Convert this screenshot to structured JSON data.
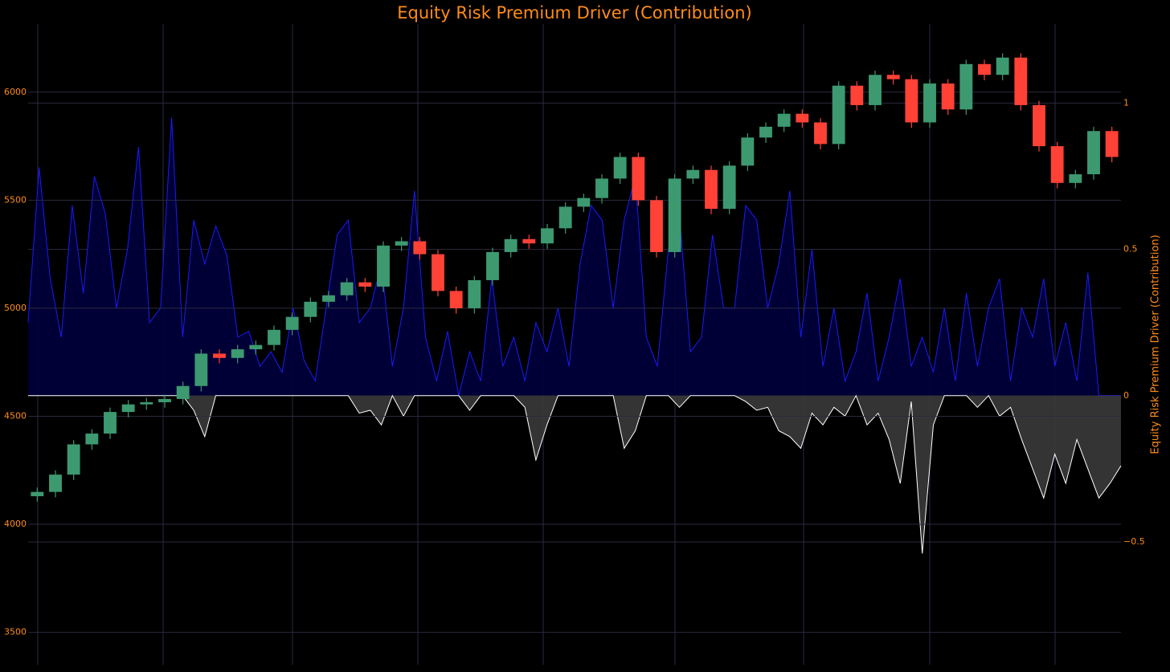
{
  "chart_data": [
    {
      "type": "candlestick",
      "title": "Equity Risk Premium Driver (Contribution)",
      "up_color": "#3d9970",
      "down_color": "#ff4136",
      "ylim": [
        3350,
        6315
      ],
      "yticks": [
        3500,
        4000,
        4500,
        5000,
        5500,
        6000
      ],
      "grid": true,
      "open": [
        4130,
        4150,
        4230,
        4370,
        4420,
        4520,
        4555,
        4565,
        4580,
        4640,
        4790,
        4770,
        4810,
        4830,
        4900,
        4960,
        5030,
        5060,
        5120,
        5100,
        5290,
        5310,
        5250,
        5080,
        5000,
        5130,
        5260,
        5320,
        5300,
        5370,
        5470,
        5510,
        5600,
        5700,
        5500,
        5260,
        5600,
        5640,
        5460,
        5660,
        5790,
        5840,
        5900,
        5860,
        5760,
        6030,
        5940,
        6080,
        6060,
        5860,
        6040,
        5920,
        6130,
        6080,
        6160,
        5940,
        5750,
        5580,
        5620,
        5820
      ],
      "high": [
        4170,
        4250,
        4390,
        4440,
        4540,
        4575,
        4585,
        4600,
        4660,
        4810,
        4810,
        4830,
        4850,
        4920,
        4980,
        5050,
        5080,
        5140,
        5140,
        5310,
        5330,
        5330,
        5270,
        5100,
        5150,
        5280,
        5340,
        5340,
        5390,
        5490,
        5530,
        5620,
        5720,
        5720,
        5520,
        5620,
        5660,
        5660,
        5680,
        5810,
        5860,
        5920,
        5920,
        5880,
        6050,
        6050,
        6100,
        6100,
        6080,
        6060,
        6060,
        6150,
        6150,
        6180,
        6180,
        5960,
        5770,
        5640,
        5840,
        5840
      ],
      "low": [
        4105,
        4125,
        4205,
        4345,
        4395,
        4495,
        4530,
        4540,
        4555,
        4615,
        4745,
        4745,
        4785,
        4805,
        4875,
        4935,
        5005,
        5035,
        5075,
        5075,
        5265,
        5225,
        5055,
        4975,
        4975,
        5105,
        5235,
        5275,
        5275,
        5345,
        5445,
        5485,
        5575,
        5475,
        5235,
        5235,
        5575,
        5435,
        5435,
        5635,
        5765,
        5815,
        5835,
        5735,
        5735,
        5915,
        5915,
        6035,
        5835,
        5835,
        5895,
        5895,
        6055,
        6055,
        5915,
        5725,
        5555,
        5555,
        5595,
        5675
      ],
      "close": [
        4150,
        4230,
        4370,
        4420,
        4520,
        4555,
        4565,
        4580,
        4640,
        4790,
        4770,
        4810,
        4830,
        4900,
        4960,
        5030,
        5060,
        5120,
        5100,
        5290,
        5310,
        5250,
        5080,
        5000,
        5130,
        5260,
        5320,
        5300,
        5370,
        5470,
        5510,
        5600,
        5700,
        5500,
        5260,
        5600,
        5640,
        5460,
        5660,
        5790,
        5840,
        5900,
        5860,
        5760,
        6030,
        5940,
        6080,
        6060,
        5860,
        6040,
        5920,
        6130,
        6080,
        6160,
        5940,
        5750,
        5580,
        5620,
        5820,
        5700
      ]
    },
    {
      "type": "area",
      "y2label": "Equity Risk Premium Driver (Contribution)",
      "y2lim": [
        -0.92,
        1.27
      ],
      "y2ticks": [
        {
          "value": -0.5,
          "label": "−0.5"
        },
        0,
        0.5,
        1
      ],
      "grid": true,
      "series": [
        {
          "color": "#1a1aff",
          "fill": "#00003c",
          "axis": "y2",
          "values": [
            0.25,
            0.78,
            0.4,
            0.2,
            0.65,
            0.35,
            0.75,
            0.62,
            0.3,
            0.5,
            0.85,
            0.25,
            0.3,
            0.95,
            0.2,
            0.6,
            0.45,
            0.58,
            0.48,
            0.2,
            0.22,
            0.1,
            0.15,
            0.08,
            0.3,
            0.12,
            0.05,
            0.3,
            0.55,
            0.6,
            0.25,
            0.3,
            0.45,
            0.1,
            0.3,
            0.7,
            0.2,
            0.05,
            0.22,
            0.0,
            0.15,
            0.05,
            0.4,
            0.1,
            0.2,
            0.05,
            0.25,
            0.15,
            0.3,
            0.1,
            0.45,
            0.65,
            0.6,
            0.3,
            0.6,
            0.75,
            0.2,
            0.1,
            0.5,
            0.62,
            0.15,
            0.2,
            0.55,
            0.3,
            0.3,
            0.65,
            0.6,
            0.3,
            0.45,
            0.7,
            0.2,
            0.5,
            0.1,
            0.3,
            0.05,
            0.15,
            0.35,
            0.05,
            0.2,
            0.4,
            0.1,
            0.2,
            0.08,
            0.3,
            0.05,
            0.35,
            0.1,
            0.3,
            0.4,
            0.05,
            0.3,
            0.2,
            0.4,
            0.1,
            0.25,
            0.05,
            0.42,
            0.0,
            0.0,
            0.0
          ]
        },
        {
          "color": "#ffffff",
          "fill": "#3a3a3a",
          "axis": "y2",
          "values": [
            0,
            0,
            0,
            0,
            0,
            0,
            0,
            0,
            0,
            0,
            0,
            0,
            0,
            0,
            0,
            -0.05,
            -0.14,
            0,
            0,
            0,
            0,
            0,
            0,
            0,
            0,
            0,
            0,
            0,
            0,
            0,
            -0.06,
            -0.05,
            -0.1,
            0,
            -0.07,
            0,
            0,
            0,
            0,
            0,
            -0.05,
            0,
            0,
            0,
            0,
            -0.04,
            -0.22,
            -0.1,
            0,
            0,
            0,
            0,
            0,
            0,
            -0.18,
            -0.12,
            0,
            0,
            0,
            -0.04,
            0,
            0,
            0,
            0,
            0,
            -0.02,
            -0.05,
            -0.04,
            -0.12,
            -0.14,
            -0.18,
            -0.06,
            -0.1,
            -0.04,
            -0.07,
            0,
            -0.1,
            -0.06,
            -0.15,
            -0.3,
            -0.02,
            -0.54,
            -0.1,
            0,
            0,
            0,
            -0.04,
            0,
            -0.07,
            -0.04,
            -0.15,
            -0.25,
            -0.35,
            -0.2,
            -0.3,
            -0.15,
            -0.25,
            -0.35,
            -0.3,
            -0.24
          ]
        }
      ]
    }
  ]
}
